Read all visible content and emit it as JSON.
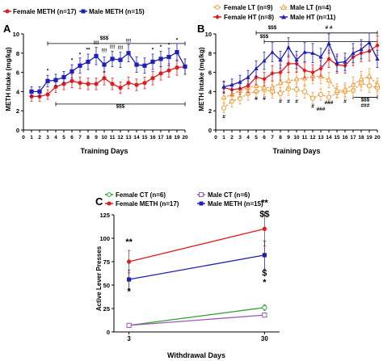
{
  "panels": [
    {
      "letter": "A",
      "ylabel": "METH Intake (mg/kg)",
      "xlabel": "Training Days",
      "legend": [
        {
          "label": "Female METH (n=17)",
          "color": "#e31a1c",
          "marker": "circle"
        },
        {
          "label": "Male METH (n=15)",
          "color": "#1f1fb5",
          "marker": "square"
        }
      ]
    },
    {
      "letter": "B",
      "ylabel": "METH Intake (mg/kg)",
      "xlabel": "Training Days",
      "legend": [
        {
          "label": "Female LT (n=9)",
          "color": "#f39c3a",
          "marker": "circle-open"
        },
        {
          "label": "Male LT (n=4)",
          "color": "#f39c3a",
          "marker": "triangle-open"
        },
        {
          "label": "Female HT (n=8)",
          "color": "#e31a1c",
          "marker": "diamond"
        },
        {
          "label": "Male HT (n=11)",
          "color": "#1f1fb5",
          "marker": "triangle"
        }
      ]
    },
    {
      "letter": "C",
      "ylabel": "Active Lever Presses",
      "xlabel": "Withdrawal Days",
      "legend": [
        {
          "label": "Female CT (n=6)",
          "color": "#2ca02c",
          "marker": "circle-open"
        },
        {
          "label": "Male CT (n=6)",
          "color": "#9b59b6",
          "marker": "square-open"
        },
        {
          "label": "Female METH (n=17)",
          "color": "#e31a1c",
          "marker": "circle"
        },
        {
          "label": "Male METH (n=15)",
          "color": "#1f1fb5",
          "marker": "square"
        }
      ]
    }
  ],
  "chart_data": [
    {
      "type": "line",
      "title": "A",
      "xlabel": "Training Days",
      "ylabel": "METH Intake (mg/kg)",
      "x": [
        1,
        2,
        3,
        4,
        5,
        6,
        7,
        8,
        9,
        10,
        11,
        12,
        13,
        14,
        15,
        16,
        17,
        18,
        19,
        20
      ],
      "xlim": [
        0,
        20
      ],
      "ylim": [
        0,
        10
      ],
      "yticks": [
        0,
        2,
        4,
        6,
        8,
        10
      ],
      "series": [
        {
          "name": "Female METH (n=17)",
          "color": "#e31a1c",
          "values": [
            3.5,
            3.5,
            3.7,
            4.5,
            4.8,
            5.1,
            4.9,
            4.8,
            4.8,
            5.4,
            4.8,
            4.4,
            4.9,
            4.7,
            4.9,
            5.4,
            5.9,
            6.2,
            6.5,
            6.6
          ],
          "err": [
            0.5,
            0.5,
            0.5,
            0.6,
            0.6,
            0.7,
            0.6,
            0.6,
            0.6,
            0.7,
            0.6,
            0.6,
            0.6,
            0.6,
            0.6,
            0.7,
            0.7,
            0.7,
            0.8,
            0.8
          ]
        },
        {
          "name": "Male METH (n=15)",
          "color": "#1f1fb5",
          "values": [
            4.0,
            4.0,
            5.1,
            5.2,
            5.5,
            6.1,
            6.7,
            7.1,
            7.7,
            6.8,
            7.4,
            7.3,
            8.0,
            6.8,
            6.7,
            7.1,
            7.4,
            7.6,
            8.1,
            6.6
          ],
          "err": [
            0.5,
            0.5,
            0.6,
            0.6,
            0.6,
            0.7,
            0.8,
            0.8,
            0.9,
            0.8,
            0.8,
            0.8,
            0.9,
            0.8,
            0.8,
            0.8,
            0.8,
            0.9,
            0.9,
            0.8
          ]
        }
      ],
      "annotations": [
        {
          "text": "$$$",
          "x": 10,
          "y": 9.4,
          "bracket": [
            3,
            20
          ],
          "bracket_y": 9.0
        },
        {
          "text": "$$$",
          "x": 12,
          "y": 2.3,
          "bracket": [
            4,
            20
          ],
          "bracket_y": 2.7
        },
        {
          "text": "*",
          "x": 3,
          "y": 6.0
        },
        {
          "text": "*",
          "x": 6,
          "y": 7.1
        },
        {
          "text": "*",
          "x": 7,
          "y": 7.7
        },
        {
          "text": "**",
          "x": 8,
          "y": 8.2
        },
        {
          "text": "!!!",
          "x": 9,
          "y": 8.9
        },
        {
          "text": "!!!",
          "x": 10,
          "y": 8.1
        },
        {
          "text": "!!!",
          "x": 11,
          "y": 8.5
        },
        {
          "text": "!!!",
          "x": 12,
          "y": 8.4
        },
        {
          "text": "!!!",
          "x": 13,
          "y": 9.1
        },
        {
          "text": "*",
          "x": 16,
          "y": 8.2
        },
        {
          "text": "*",
          "x": 17,
          "y": 8.5
        },
        {
          "text": "*",
          "x": 18,
          "y": 8.7
        },
        {
          "text": "*",
          "x": 19,
          "y": 9.2
        }
      ]
    },
    {
      "type": "line",
      "title": "B",
      "xlabel": "Training Days",
      "ylabel": "METH Intake (mg/kg)",
      "x": [
        1,
        2,
        3,
        4,
        5,
        6,
        7,
        8,
        9,
        10,
        11,
        12,
        13,
        14,
        15,
        16,
        17,
        18,
        19,
        20
      ],
      "xlim": [
        0,
        20
      ],
      "ylim": [
        0,
        10
      ],
      "yticks": [
        0,
        2,
        4,
        6,
        8,
        10
      ],
      "series": [
        {
          "name": "Female LT (n=9)",
          "color": "#f39c3a",
          "dash": true,
          "marker": "circle-open",
          "values": [
            2.3,
            3.0,
            3.3,
            3.8,
            4.0,
            4.2,
            4.0,
            3.8,
            4.3,
            4.2,
            4.0,
            3.3,
            3.7,
            3.4,
            3.9,
            4.0,
            4.1,
            4.9,
            4.6,
            4.4
          ],
          "err": [
            0.5,
            0.6,
            0.6,
            0.7,
            0.7,
            0.7,
            0.7,
            0.6,
            0.7,
            0.7,
            0.7,
            0.6,
            0.6,
            0.6,
            0.6,
            0.7,
            0.7,
            0.8,
            0.7,
            0.7
          ]
        },
        {
          "name": "Male LT (n=4)",
          "color": "#f39c3a",
          "dash": true,
          "marker": "triangle-open",
          "values": [
            3.4,
            3.7,
            4.1,
            4.4,
            4.6,
            4.4,
            4.4,
            4.9,
            5.1,
            5.3,
            5.4,
            5.6,
            5.6,
            5.2,
            4.1,
            4.2,
            4.7,
            5.3,
            5.6,
            4.7
          ],
          "err": [
            0.6,
            0.6,
            0.7,
            0.7,
            0.7,
            0.7,
            0.7,
            0.8,
            0.8,
            0.8,
            0.8,
            0.8,
            0.8,
            0.8,
            0.7,
            0.7,
            0.8,
            0.8,
            0.8,
            0.7
          ]
        },
        {
          "name": "Female HT (n=8)",
          "color": "#e31a1c",
          "marker": "diamond",
          "values": [
            4.4,
            4.2,
            4.3,
            4.6,
            5.5,
            5.3,
            5.9,
            6.0,
            6.9,
            6.9,
            6.2,
            6.0,
            6.4,
            7.4,
            6.8,
            6.7,
            7.6,
            8.0,
            8.2,
            8.8
          ],
          "err": [
            0.6,
            0.6,
            0.6,
            0.7,
            0.8,
            0.7,
            0.8,
            0.8,
            0.9,
            0.9,
            0.8,
            0.8,
            0.8,
            0.9,
            0.9,
            0.8,
            0.9,
            0.9,
            1.0,
            1.0
          ]
        },
        {
          "name": "Male HT (n=11)",
          "color": "#1f1fb5",
          "marker": "triangle",
          "values": [
            4.5,
            4.7,
            5.0,
            5.5,
            6.4,
            7.2,
            8.1,
            7.3,
            8.6,
            7.3,
            8.1,
            8.0,
            7.6,
            9.0,
            7.0,
            7.1,
            8.0,
            8.4,
            9.1,
            7.4
          ],
          "err": [
            0.6,
            0.6,
            0.7,
            0.7,
            0.8,
            0.9,
            1.0,
            0.9,
            1.0,
            0.9,
            1.0,
            1.0,
            0.9,
            1.0,
            0.9,
            0.9,
            1.0,
            1.0,
            1.0,
            0.9
          ]
        }
      ],
      "annotations": [
        {
          "text": "$$$",
          "x": 7,
          "y": 10.5,
          "bracket": [
            5,
            20
          ],
          "bracket_y": 10.1
        },
        {
          "text": "# #",
          "x": 14,
          "y": 10.5
        },
        {
          "text": "$$$",
          "x": 6,
          "y": 9.6,
          "bracket": [
            6,
            20
          ],
          "bracket_y": 9.2
        },
        {
          "text": "$$$",
          "x": 18.5,
          "y": 3.0,
          "bracket": [
            17,
            20
          ],
          "bracket_y": 3.4
        },
        {
          "text": "###",
          "x": 18.5,
          "y": 2.4
        },
        {
          "text": "#",
          "x": 1,
          "y": 1.2
        },
        {
          "text": "#",
          "x": 5,
          "y": 3.1
        },
        {
          "text": "#",
          "x": 6,
          "y": 3.1
        },
        {
          "text": "#",
          "x": 8,
          "y": 2.8
        },
        {
          "text": "#",
          "x": 9,
          "y": 2.8
        },
        {
          "text": "#",
          "x": 10,
          "y": 2.8
        },
        {
          "text": "#",
          "x": 12,
          "y": 2.3
        },
        {
          "text": "###",
          "x": 13,
          "y": 2.0
        },
        {
          "text": "###",
          "x": 14,
          "y": 2.7
        },
        {
          "text": "#",
          "x": 16,
          "y": 2.8
        }
      ]
    },
    {
      "type": "line",
      "title": "C",
      "xlabel": "Withdrawal Days",
      "ylabel": "Active Lever Presses",
      "x": [
        3,
        30
      ],
      "xticks": [
        3,
        30
      ],
      "xlim": [
        0,
        33
      ],
      "ylim": [
        0,
        125
      ],
      "yticks": [
        0,
        25,
        50,
        75,
        100,
        125
      ],
      "series": [
        {
          "name": "Female CT (n=6)",
          "color": "#2ca02c",
          "marker": "circle-open",
          "values": [
            7,
            26
          ],
          "err": [
            1,
            3
          ]
        },
        {
          "name": "Male CT (n=6)",
          "color": "#9b59b6",
          "marker": "square-open",
          "values": [
            7,
            18
          ],
          "err": [
            1,
            2
          ]
        },
        {
          "name": "Female METH (n=17)",
          "color": "#e31a1c",
          "marker": "circle",
          "values": [
            75,
            110
          ],
          "err": [
            12,
            18
          ]
        },
        {
          "name": "Male METH (n=15)",
          "color": "#1f1fb5",
          "marker": "square",
          "values": [
            56,
            82
          ],
          "err": [
            10,
            15
          ]
        }
      ],
      "annotations": [
        {
          "text": "**",
          "x": 3,
          "y": 93
        },
        {
          "text": "*",
          "x": 3,
          "y": 40
        },
        {
          "text": "**",
          "x": 30,
          "y": 135
        },
        {
          "text": "$$",
          "x": 30,
          "y": 123
        },
        {
          "text": "$",
          "x": 30,
          "y": 60
        },
        {
          "text": "*",
          "x": 30,
          "y": 50
        }
      ]
    }
  ]
}
